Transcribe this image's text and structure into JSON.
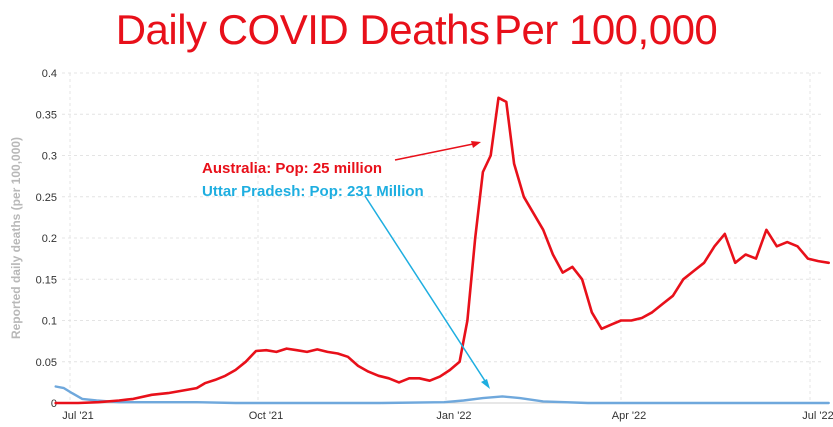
{
  "chart_data": {
    "type": "line",
    "title_main": "Daily COVID Deaths",
    "title_emph": "Per 100,000",
    "xlabel": "",
    "ylabel": "Reported daily deaths (per 100,000)",
    "ylim": [
      0,
      0.4
    ],
    "y_ticks": [
      "0",
      "0.05",
      "0.1",
      "0.15",
      "0.2",
      "0.25",
      "0.3",
      "0.35",
      "0.4"
    ],
    "x_ticks": [
      "Jul '21",
      "Oct '21",
      "Jan '22",
      "Apr '22",
      "Jul '22"
    ],
    "grid": true,
    "series": [
      {
        "name": "Australia",
        "color": "#e8101a",
        "points": [
          [
            "2021-06-24",
            0
          ],
          [
            "2021-07-05",
            0
          ],
          [
            "2021-07-15",
            0.001
          ],
          [
            "2021-07-25",
            0.003
          ],
          [
            "2021-08-01",
            0.005
          ],
          [
            "2021-08-10",
            0.01
          ],
          [
            "2021-08-18",
            0.012
          ],
          [
            "2021-08-25",
            0.015
          ],
          [
            "2021-09-01",
            0.018
          ],
          [
            "2021-09-05",
            0.024
          ],
          [
            "2021-09-10",
            0.028
          ],
          [
            "2021-09-15",
            0.033
          ],
          [
            "2021-09-20",
            0.04
          ],
          [
            "2021-09-25",
            0.05
          ],
          [
            "2021-09-30",
            0.063
          ],
          [
            "2021-10-05",
            0.064
          ],
          [
            "2021-10-10",
            0.062
          ],
          [
            "2021-10-15",
            0.066
          ],
          [
            "2021-10-20",
            0.064
          ],
          [
            "2021-10-25",
            0.062
          ],
          [
            "2021-10-30",
            0.065
          ],
          [
            "2021-11-04",
            0.062
          ],
          [
            "2021-11-09",
            0.06
          ],
          [
            "2021-11-14",
            0.056
          ],
          [
            "2021-11-19",
            0.045
          ],
          [
            "2021-11-24",
            0.038
          ],
          [
            "2021-11-29",
            0.033
          ],
          [
            "2021-12-04",
            0.03
          ],
          [
            "2021-12-09",
            0.025
          ],
          [
            "2021-12-14",
            0.03
          ],
          [
            "2021-12-19",
            0.03
          ],
          [
            "2021-12-24",
            0.027
          ],
          [
            "2021-12-29",
            0.032
          ],
          [
            "2022-01-03",
            0.04
          ],
          [
            "2022-01-08",
            0.05
          ],
          [
            "2022-01-12",
            0.1
          ],
          [
            "2022-01-16",
            0.2
          ],
          [
            "2022-01-20",
            0.28
          ],
          [
            "2022-01-24",
            0.3
          ],
          [
            "2022-01-28",
            0.37
          ],
          [
            "2022-02-01",
            0.365
          ],
          [
            "2022-02-05",
            0.29
          ],
          [
            "2022-02-10",
            0.25
          ],
          [
            "2022-02-15",
            0.23
          ],
          [
            "2022-02-20",
            0.21
          ],
          [
            "2022-02-25",
            0.18
          ],
          [
            "2022-03-02",
            0.158
          ],
          [
            "2022-03-07",
            0.165
          ],
          [
            "2022-03-12",
            0.15
          ],
          [
            "2022-03-17",
            0.11
          ],
          [
            "2022-03-22",
            0.09
          ],
          [
            "2022-03-27",
            0.095
          ],
          [
            "2022-04-01",
            0.1
          ],
          [
            "2022-04-06",
            0.1
          ],
          [
            "2022-04-11",
            0.103
          ],
          [
            "2022-04-16",
            0.11
          ],
          [
            "2022-04-21",
            0.12
          ],
          [
            "2022-04-26",
            0.13
          ],
          [
            "2022-05-01",
            0.15
          ],
          [
            "2022-05-06",
            0.16
          ],
          [
            "2022-05-11",
            0.17
          ],
          [
            "2022-05-16",
            0.19
          ],
          [
            "2022-05-21",
            0.205
          ],
          [
            "2022-05-26",
            0.17
          ],
          [
            "2022-05-31",
            0.18
          ],
          [
            "2022-06-05",
            0.175
          ],
          [
            "2022-06-10",
            0.21
          ],
          [
            "2022-06-15",
            0.19
          ],
          [
            "2022-06-20",
            0.195
          ],
          [
            "2022-06-25",
            0.19
          ],
          [
            "2022-06-30",
            0.175
          ],
          [
            "2022-07-05",
            0.172
          ],
          [
            "2022-07-10",
            0.17
          ]
        ]
      },
      {
        "name": "Uttar Pradesh",
        "color": "#6fa8dc",
        "points": [
          [
            "2021-06-24",
            0.02
          ],
          [
            "2021-06-28",
            0.018
          ],
          [
            "2021-07-02",
            0.012
          ],
          [
            "2021-07-07",
            0.005
          ],
          [
            "2021-07-14",
            0.003
          ],
          [
            "2021-07-25",
            0.001
          ],
          [
            "2021-08-10",
            0.001
          ],
          [
            "2021-09-01",
            0.001
          ],
          [
            "2021-09-20",
            0.0
          ],
          [
            "2021-10-15",
            0.0
          ],
          [
            "2021-11-30",
            0.0
          ],
          [
            "2021-12-31",
            0.001
          ],
          [
            "2022-01-10",
            0.003
          ],
          [
            "2022-01-20",
            0.006
          ],
          [
            "2022-01-30",
            0.008
          ],
          [
            "2022-02-08",
            0.006
          ],
          [
            "2022-02-20",
            0.002
          ],
          [
            "2022-03-15",
            0.0
          ],
          [
            "2022-04-15",
            0.0
          ],
          [
            "2022-05-31",
            0.0
          ],
          [
            "2022-07-10",
            0.0
          ]
        ]
      }
    ]
  },
  "annotations": {
    "australia": "Australia: Pop: 25 million",
    "up": "Uttar Pradesh: Pop: 231 Million"
  }
}
